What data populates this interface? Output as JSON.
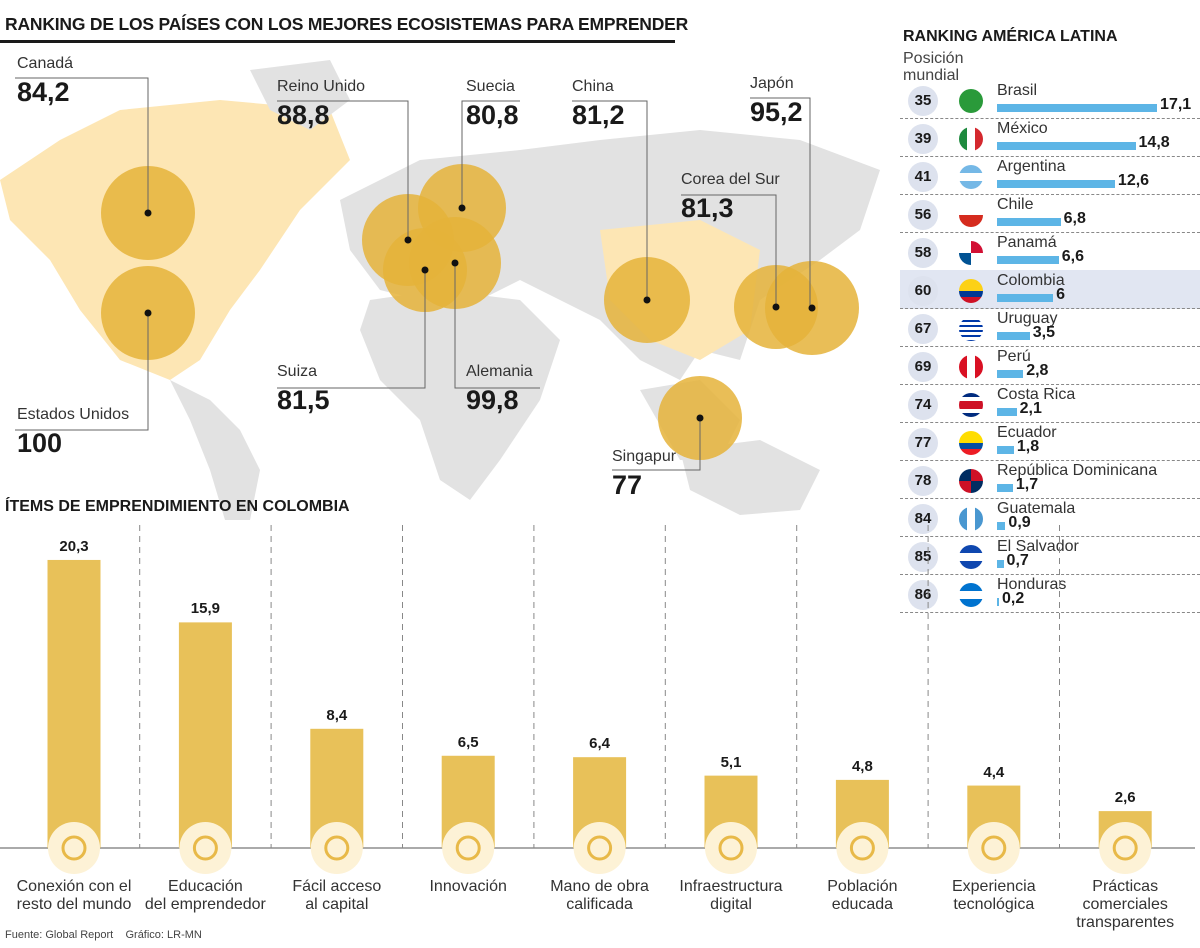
{
  "title": "RANKING DE LOS PAÍSES CON LOS MEJORES ECOSISTEMAS PARA EMPRENDER",
  "world_map": {
    "countries": [
      {
        "name": "Canadá",
        "value": "84,2"
      },
      {
        "name": "Estados Unidos",
        "value": "100"
      },
      {
        "name": "Reino Unido",
        "value": "88,8"
      },
      {
        "name": "Suecia",
        "value": "80,8"
      },
      {
        "name": "Suiza",
        "value": "81,5"
      },
      {
        "name": "Alemania",
        "value": "99,8"
      },
      {
        "name": "China",
        "value": "81,2"
      },
      {
        "name": "Corea del Sur",
        "value": "81,3"
      },
      {
        "name": "Japón",
        "value": "95,2"
      },
      {
        "name": "Singapur",
        "value": "77"
      }
    ],
    "colors": {
      "circle": "#e5b33a",
      "land": "#e2e2e2",
      "highlight_land": "#fde6b4"
    }
  },
  "latam": {
    "title": "RANKING AMÉRICA LATINA",
    "subtitle": "Posición mundial",
    "bar_color": "#5db5e6",
    "highlight": "Colombia",
    "rows": [
      {
        "pos": "35",
        "country": "Brasil",
        "value": 17.1,
        "label": "17,1"
      },
      {
        "pos": "39",
        "country": "México",
        "value": 14.8,
        "label": "14,8"
      },
      {
        "pos": "41",
        "country": "Argentina",
        "value": 12.6,
        "label": "12,6"
      },
      {
        "pos": "56",
        "country": "Chile",
        "value": 6.8,
        "label": "6,8"
      },
      {
        "pos": "58",
        "country": "Panamá",
        "value": 6.6,
        "label": "6,6"
      },
      {
        "pos": "60",
        "country": "Colombia",
        "value": 6,
        "label": "6"
      },
      {
        "pos": "67",
        "country": "Uruguay",
        "value": 3.5,
        "label": "3,5"
      },
      {
        "pos": "69",
        "country": "Perú",
        "value": 2.8,
        "label": "2,8"
      },
      {
        "pos": "74",
        "country": "Costa Rica",
        "value": 2.1,
        "label": "2,1"
      },
      {
        "pos": "77",
        "country": "Ecuador",
        "value": 1.8,
        "label": "1,8"
      },
      {
        "pos": "78",
        "country": "República Dominicana",
        "value": 1.7,
        "label": "1,7"
      },
      {
        "pos": "84",
        "country": "Guatemala",
        "value": 0.9,
        "label": "0,9"
      },
      {
        "pos": "85",
        "country": "El Salvador",
        "value": 0.7,
        "label": "0,7"
      },
      {
        "pos": "86",
        "country": "Honduras",
        "value": 0.2,
        "label": "0,2"
      }
    ]
  },
  "chart_data": {
    "type": "bar",
    "title": "ÍTEMS DE EMPRENDIMIENTO EN COLOMBIA",
    "categories": [
      "Conexión con el resto del mundo",
      "Educación del emprendedor",
      "Fácil acceso al capital",
      "Innovación",
      "Mano de obra calificada",
      "Infraestructura digital",
      "Población educada",
      "Experiencia tecnológica",
      "Prácticas comerciales transparentes"
    ],
    "category_lines": [
      [
        "Conexión con el",
        "resto del mundo"
      ],
      [
        "Educación",
        "del emprendedor"
      ],
      [
        "Fácil acceso",
        "al capital"
      ],
      [
        "Innovación"
      ],
      [
        "Mano de obra",
        "calificada"
      ],
      [
        "Infraestructura",
        "digital"
      ],
      [
        "Población",
        "educada"
      ],
      [
        "Experiencia",
        "tecnológica"
      ],
      [
        "Prácticas",
        "comerciales",
        "transparentes"
      ]
    ],
    "icons": [
      "broken-link-icon",
      "graduation-books-icon",
      "door-enter-icon",
      "lightbulb-gear-icon",
      "worker-helmet-icon",
      "touch-hand-icon",
      "people-group-icon",
      "gear-stars-icon",
      "thumbs-up-icon"
    ],
    "values": [
      20.3,
      15.9,
      8.4,
      6.5,
      6.4,
      5.1,
      4.8,
      4.4,
      2.6
    ],
    "labels": [
      "20,3",
      "15,9",
      "8,4",
      "6,5",
      "6,4",
      "5,1",
      "4,8",
      "4,4",
      "2,6"
    ],
    "bar_color": "#e8c159",
    "grid": false
  },
  "footer": {
    "source": "Fuente: Global Report",
    "graphic": "Gráfico: LR-MN"
  }
}
